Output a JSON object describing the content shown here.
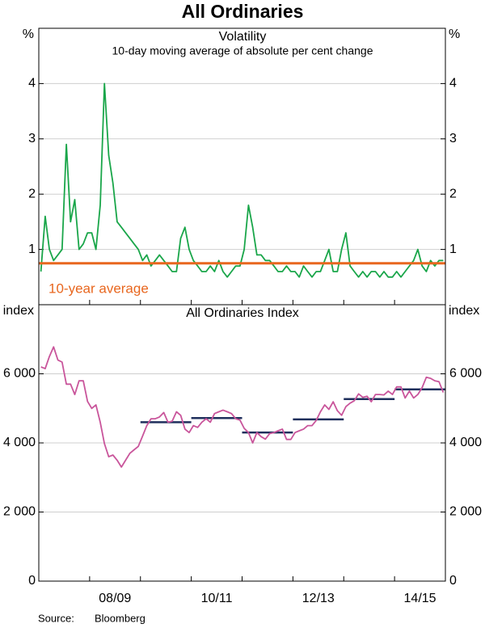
{
  "chart_data": {
    "type": "line",
    "title": "All Ordinaries",
    "source_label": "Source:",
    "source": "Bloomberg",
    "xlim": [
      0,
      96
    ],
    "xticks": [
      12,
      24,
      36,
      48,
      60,
      72,
      84
    ],
    "xlabels": [
      {
        "value": 18,
        "label": "08/09"
      },
      {
        "value": 42,
        "label": "10/11"
      },
      {
        "value": 66,
        "label": "12/13"
      },
      {
        "value": 90,
        "label": "14/15"
      }
    ],
    "grid": true,
    "panels": [
      {
        "title": "Volatility",
        "subtitle": "10-day moving average of absolute per cent change",
        "ylabel": "%",
        "ylim": [
          0,
          5
        ],
        "yticks": [
          1,
          2,
          3,
          4
        ],
        "series": [
          {
            "color": "#1aa64a",
            "values": [
              0.6,
              1.6,
              1.0,
              0.8,
              0.9,
              1.0,
              2.9,
              1.5,
              1.9,
              1.0,
              1.1,
              1.3,
              1.3,
              1.0,
              1.8,
              4.0,
              2.7,
              2.2,
              1.5,
              1.4,
              1.3,
              1.2,
              1.1,
              1.0,
              0.8,
              0.9,
              0.7,
              0.8,
              0.9,
              0.8,
              0.7,
              0.6,
              0.6,
              1.2,
              1.4,
              1.0,
              0.8,
              0.7,
              0.6,
              0.6,
              0.7,
              0.6,
              0.8,
              0.6,
              0.5,
              0.6,
              0.7,
              0.7,
              1.0,
              1.8,
              1.4,
              0.9,
              0.9,
              0.8,
              0.8,
              0.7,
              0.6,
              0.6,
              0.7,
              0.6,
              0.6,
              0.5,
              0.7,
              0.6,
              0.5,
              0.6,
              0.6,
              0.8,
              1.0,
              0.6,
              0.6,
              1.0,
              1.3,
              0.7,
              0.6,
              0.5,
              0.6,
              0.5,
              0.6,
              0.6,
              0.5,
              0.6,
              0.5,
              0.5,
              0.6,
              0.5,
              0.6,
              0.7,
              0.8,
              1.0,
              0.7,
              0.6,
              0.8,
              0.7,
              0.8,
              0.8
            ]
          }
        ],
        "hlines": [
          {
            "value": 0.75,
            "label": "10-year average",
            "color": "#e8671f"
          }
        ]
      },
      {
        "title": "All Ordinaries Index",
        "ylabel": "index",
        "ylim": [
          0,
          8000
        ],
        "yticks": [
          {
            "value": 0,
            "label": "0"
          },
          {
            "value": 2000,
            "label": "2 000"
          },
          {
            "value": 4000,
            "label": "4 000"
          },
          {
            "value": 6000,
            "label": "6 000"
          }
        ],
        "series": [
          {
            "color": "#c9559b",
            "values": [
              6200,
              6150,
              6500,
              6780,
              6400,
              6340,
              5700,
              5700,
              5400,
              5800,
              5800,
              5200,
              5000,
              5100,
              4600,
              3980,
              3600,
              3650,
              3500,
              3300,
              3500,
              3700,
              3800,
              3900,
              4200,
              4500,
              4700,
              4700,
              4750,
              4880,
              4600,
              4630,
              4900,
              4800,
              4400,
              4300,
              4500,
              4450,
              4600,
              4700,
              4600,
              4850,
              4900,
              4950,
              4900,
              4850,
              4700,
              4660,
              4420,
              4300,
              4000,
              4300,
              4180,
              4110,
              4270,
              4300,
              4350,
              4400,
              4100,
              4100,
              4300,
              4350,
              4400,
              4500,
              4500,
              4650,
              4900,
              5100,
              4970,
              5190,
              4930,
              4800,
              5050,
              5150,
              5220,
              5420,
              5320,
              5350,
              5190,
              5400,
              5400,
              5390,
              5500,
              5400,
              5620,
              5620,
              5300,
              5500,
              5300,
              5400,
              5600,
              5900,
              5870,
              5800,
              5770,
              5460
            ]
          }
        ],
        "segments_color": "#1f2f5c",
        "segments": [
          {
            "start": 24,
            "end": 36,
            "value": 4600
          },
          {
            "start": 36,
            "end": 48,
            "value": 4720
          },
          {
            "start": 48,
            "end": 60,
            "value": 4300
          },
          {
            "start": 60,
            "end": 72,
            "value": 4680
          },
          {
            "start": 72,
            "end": 84,
            "value": 5270
          },
          {
            "start": 84,
            "end": 96,
            "value": 5550
          }
        ]
      }
    ]
  }
}
